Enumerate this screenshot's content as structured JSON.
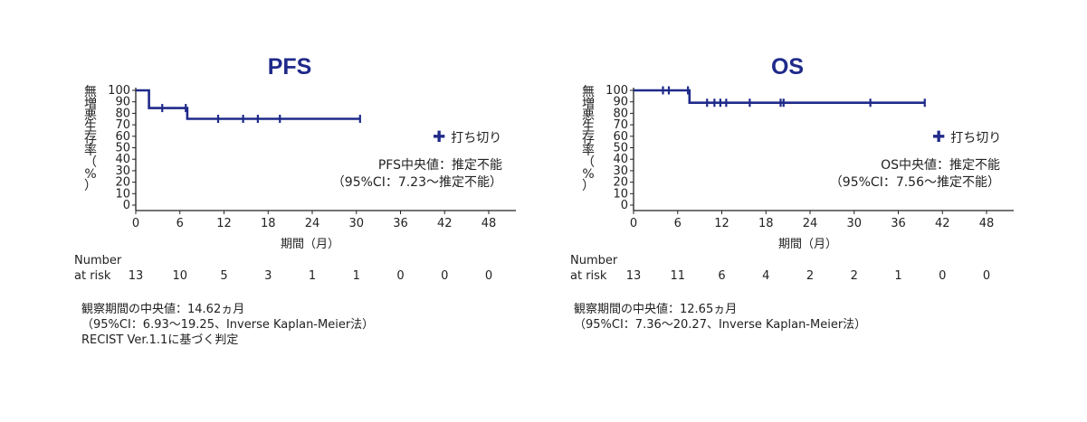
{
  "panels": [
    {
      "title": "PFS",
      "ylabel_chars": [
        "無",
        "増",
        "悪",
        "生",
        "存",
        "率",
        "（",
        "%",
        "）"
      ],
      "xlabel": "期間（月）",
      "legend_label": "打ち切り",
      "median_line1": "PFS中央値：推定不能",
      "median_line2": "（95%CI：7.23～推定不能）",
      "risk_title_line1": "Number",
      "risk_title_line2": "at risk",
      "risk_values": [
        "13",
        "10",
        "5",
        "3",
        "1",
        "1",
        "0",
        "0",
        "0"
      ],
      "notes": [
        "観察期間の中央値：14.62ヵ月",
        "（95%CI：6.93～19.25、Inverse Kaplan-Meier法）",
        "RECIST Ver.1.1に基づく判定"
      ]
    },
    {
      "title": "OS",
      "ylabel_chars": [
        "無",
        "増",
        "悪",
        "生",
        "存",
        "率",
        "（",
        "%",
        "）"
      ],
      "xlabel": "期間（月）",
      "legend_label": "打ち切り",
      "median_line1": "OS中央値：推定不能",
      "median_line2": "（95%CI：7.56～推定不能）",
      "risk_title_line1": "Number",
      "risk_title_line2": "at risk",
      "risk_values": [
        "13",
        "11",
        "6",
        "4",
        "2",
        "2",
        "1",
        "0",
        "0"
      ],
      "notes": [
        "観察期間の中央値：12.65ヵ月",
        "（95%CI：7.36～20.27、Inverse Kaplan-Meier法）"
      ]
    }
  ],
  "chart_data": [
    {
      "type": "line",
      "title": "PFS",
      "xlabel": "期間（月）",
      "ylabel": "無増悪生存率（%）",
      "xlim": [
        0,
        48
      ],
      "ylim": [
        0,
        100
      ],
      "x_ticks": [
        0,
        6,
        12,
        18,
        24,
        30,
        36,
        42,
        48
      ],
      "y_ticks": [
        0,
        10,
        20,
        30,
        40,
        50,
        60,
        70,
        80,
        90,
        100
      ],
      "color": "#1f2a8a",
      "step_points": [
        [
          0,
          100
        ],
        [
          1.8,
          100
        ],
        [
          1.8,
          84.6
        ],
        [
          7.0,
          84.6
        ],
        [
          7.0,
          75.2
        ],
        [
          30.5,
          75.2
        ]
      ],
      "censor_points": [
        [
          3.6,
          84.6
        ],
        [
          6.8,
          84.6
        ],
        [
          11.2,
          75.2
        ],
        [
          14.6,
          75.2
        ],
        [
          16.6,
          75.2
        ],
        [
          19.6,
          75.2
        ],
        [
          30.5,
          75.2
        ]
      ]
    },
    {
      "type": "line",
      "title": "OS",
      "xlabel": "期間（月）",
      "ylabel": "無増悪生存率（%）",
      "xlim": [
        0,
        48
      ],
      "ylim": [
        0,
        100
      ],
      "x_ticks": [
        0,
        6,
        12,
        18,
        24,
        30,
        36,
        42,
        48
      ],
      "y_ticks": [
        0,
        10,
        20,
        30,
        40,
        50,
        60,
        70,
        80,
        90,
        100
      ],
      "color": "#1f2a8a",
      "step_points": [
        [
          0,
          100
        ],
        [
          7.6,
          100
        ],
        [
          7.6,
          89.2
        ],
        [
          39.6,
          89.2
        ]
      ],
      "censor_points": [
        [
          4.0,
          100
        ],
        [
          4.8,
          100
        ],
        [
          7.4,
          100
        ],
        [
          10.0,
          89.2
        ],
        [
          11.0,
          89.2
        ],
        [
          11.8,
          89.2
        ],
        [
          12.6,
          89.2
        ],
        [
          15.8,
          89.2
        ],
        [
          20.0,
          89.2
        ],
        [
          20.4,
          89.2
        ],
        [
          32.2,
          89.2
        ],
        [
          39.6,
          89.2
        ]
      ]
    }
  ]
}
